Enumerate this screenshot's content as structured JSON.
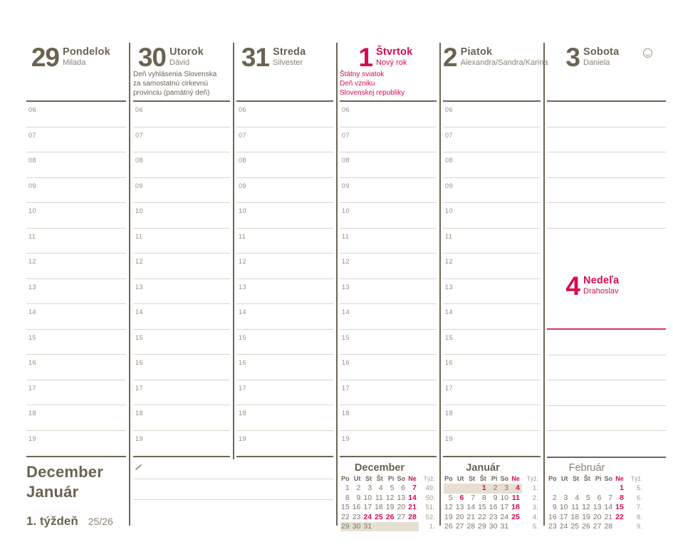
{
  "colors": {
    "ink": "#6b6352",
    "muted": "#8b8274",
    "faint": "#a29a8a",
    "line_light": "#d9d4c7",
    "line_dark": "#6e6554",
    "red": "#d60b52",
    "week_highlight": "#e5e0d2"
  },
  "hours": [
    "06",
    "07",
    "08",
    "09",
    "10",
    "11",
    "12",
    "13",
    "14",
    "15",
    "16",
    "17",
    "18",
    "19"
  ],
  "days": [
    {
      "number": "29",
      "name": "Pondelok",
      "name_day": "Milada",
      "note": "",
      "holiday": false
    },
    {
      "number": "30",
      "name": "Utorok",
      "name_day": "Dávid",
      "note": "Deň vyhlásenia Slovenska\nza samostatnú cirkevnú\nprovinciu (pamätný deň)",
      "holiday": false
    },
    {
      "number": "31",
      "name": "Streda",
      "name_day": "Silvester",
      "note": "",
      "holiday": false
    },
    {
      "number": "1",
      "name": "Štvrtok",
      "name_day": "Nový rok",
      "note": "Štátny sviatok\nDeň vzniku\nSlovenskej republiky",
      "holiday": true
    },
    {
      "number": "2",
      "name": "Piatok",
      "name_day": "Alexandra/Sandra/Karina",
      "note": "",
      "holiday": false
    },
    {
      "number": "3",
      "name": "Sobota",
      "name_day": "Daniela",
      "note": "",
      "holiday": false
    },
    {
      "number": "4",
      "name": "Nedeľa",
      "name_day": "Drahoslav",
      "note": "",
      "holiday": true
    }
  ],
  "footer": {
    "months_line1": "December",
    "months_line2": "Január",
    "week_label": "1. týždeň",
    "page_ref": "25/26"
  },
  "icons": {
    "moon_phase": "full-moon outline circle",
    "pencil": "pencil stroke mark"
  },
  "mini_calendars": [
    {
      "title": "December",
      "bold": true,
      "day_headers": [
        "Po",
        "Ut",
        "St",
        "Št",
        "Pi",
        "So",
        "Ne"
      ],
      "week_header": "Týž.",
      "weeks": [
        {
          "days": [
            "1",
            "2",
            "3",
            "4",
            "5",
            "6",
            "7"
          ],
          "red": [
            6
          ],
          "week": "49.",
          "highlight": false
        },
        {
          "days": [
            "8",
            "9",
            "10",
            "11",
            "12",
            "13",
            "14"
          ],
          "red": [
            6
          ],
          "week": "50.",
          "highlight": false
        },
        {
          "days": [
            "15",
            "16",
            "17",
            "18",
            "19",
            "20",
            "21"
          ],
          "red": [
            6
          ],
          "week": "51.",
          "highlight": false
        },
        {
          "days": [
            "22",
            "23",
            "24",
            "25",
            "26",
            "27",
            "28"
          ],
          "red": [
            2,
            3,
            4,
            6
          ],
          "week": "52.",
          "highlight": false
        },
        {
          "days": [
            "29",
            "30",
            "31",
            "",
            "",
            "",
            ""
          ],
          "red": [],
          "week": "1.",
          "highlight": true
        }
      ]
    },
    {
      "title": "Január",
      "bold": true,
      "day_headers": [
        "Po",
        "Ut",
        "St",
        "Št",
        "Pi",
        "So",
        "Ne"
      ],
      "week_header": "Týž.",
      "weeks": [
        {
          "days": [
            "",
            "",
            "",
            "1",
            "2",
            "3",
            "4"
          ],
          "red": [
            3,
            6
          ],
          "week": "1.",
          "highlight": true
        },
        {
          "days": [
            "5",
            "6",
            "7",
            "8",
            "9",
            "10",
            "11"
          ],
          "red": [
            1,
            6
          ],
          "week": "2.",
          "highlight": false
        },
        {
          "days": [
            "12",
            "13",
            "14",
            "15",
            "16",
            "17",
            "18"
          ],
          "red": [
            6
          ],
          "week": "3.",
          "highlight": false
        },
        {
          "days": [
            "19",
            "20",
            "21",
            "22",
            "23",
            "24",
            "25"
          ],
          "red": [
            6
          ],
          "week": "4.",
          "highlight": false
        },
        {
          "days": [
            "26",
            "27",
            "28",
            "29",
            "30",
            "31",
            ""
          ],
          "red": [],
          "week": "5.",
          "highlight": false
        }
      ]
    },
    {
      "title": "Február",
      "bold": false,
      "day_headers": [
        "Po",
        "Ut",
        "St",
        "Št",
        "Pi",
        "So",
        "Ne"
      ],
      "week_header": "Týž.",
      "weeks": [
        {
          "days": [
            "",
            "",
            "",
            "",
            "",
            "",
            "1"
          ],
          "red": [
            6
          ],
          "week": "5.",
          "highlight": false
        },
        {
          "days": [
            "2",
            "3",
            "4",
            "5",
            "6",
            "7",
            "8"
          ],
          "red": [
            6
          ],
          "week": "6.",
          "highlight": false
        },
        {
          "days": [
            "9",
            "10",
            "11",
            "12",
            "13",
            "14",
            "15"
          ],
          "red": [
            6
          ],
          "week": "7.",
          "highlight": false
        },
        {
          "days": [
            "16",
            "17",
            "18",
            "19",
            "20",
            "21",
            "22"
          ],
          "red": [
            6
          ],
          "week": "8.",
          "highlight": false
        },
        {
          "days": [
            "23",
            "24",
            "25",
            "26",
            "27",
            "28",
            ""
          ],
          "red": [],
          "week": "9.",
          "highlight": false
        }
      ]
    }
  ]
}
